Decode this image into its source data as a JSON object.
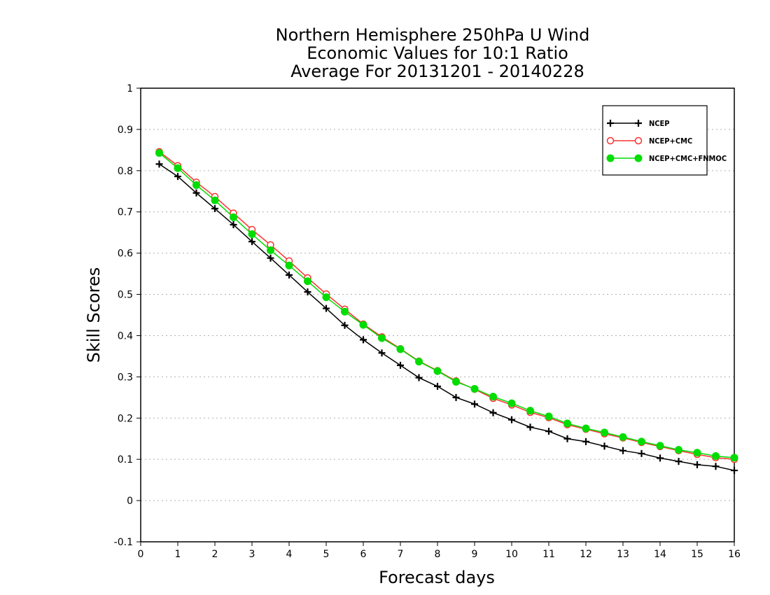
{
  "chart_data": {
    "type": "line",
    "title": [
      "Northern Hemisphere 250hPa U Wind",
      "Economic Values for 10:1 Ratio",
      "Average For 20131201 - 20140228"
    ],
    "xlabel": "Forecast days",
    "ylabel": "Skill Scores",
    "xlim": [
      0,
      16
    ],
    "ylim": [
      -0.1,
      1
    ],
    "xticks": [
      "0",
      "1",
      "2",
      "3",
      "4",
      "5",
      "6",
      "7",
      "8",
      "9",
      "10",
      "11",
      "12",
      "13",
      "14",
      "15",
      "16"
    ],
    "yticks": [
      "-0.1",
      "0",
      "0.1",
      "0.2",
      "0.3",
      "0.4",
      "0.5",
      "0.6",
      "0.7",
      "0.8",
      "0.9",
      "1"
    ],
    "grid": true,
    "legend_position": "top-right",
    "x": [
      0.5,
      1,
      1.5,
      2,
      2.5,
      3,
      3.5,
      4,
      4.5,
      5,
      5.5,
      6,
      6.5,
      7,
      7.5,
      8,
      8.5,
      9,
      9.5,
      10,
      10.5,
      11,
      11.5,
      12,
      12.5,
      13,
      13.5,
      14,
      14.5,
      15,
      15.5,
      16
    ],
    "series": [
      {
        "name": "NCEP",
        "color": "#000000",
        "marker": "plus",
        "values": [
          0.816,
          0.786,
          0.746,
          0.708,
          0.669,
          0.628,
          0.588,
          0.547,
          0.506,
          0.466,
          0.425,
          0.39,
          0.358,
          0.328,
          0.298,
          0.277,
          0.25,
          0.234,
          0.213,
          0.196,
          0.178,
          0.168,
          0.15,
          0.143,
          0.132,
          0.121,
          0.114,
          0.103,
          0.095,
          0.087,
          0.083,
          0.073
        ]
      },
      {
        "name": "NCEP+CMC",
        "color": "#ff3030",
        "marker": "open-circle",
        "values": [
          0.846,
          0.812,
          0.772,
          0.737,
          0.697,
          0.657,
          0.62,
          0.581,
          0.54,
          0.501,
          0.464,
          0.428,
          0.397,
          0.368,
          0.338,
          0.315,
          0.29,
          0.27,
          0.248,
          0.232,
          0.214,
          0.201,
          0.184,
          0.173,
          0.162,
          0.152,
          0.141,
          0.131,
          0.121,
          0.112,
          0.104,
          0.1
        ]
      },
      {
        "name": "NCEP+CMC+FNMOC",
        "color": "#00dd00",
        "marker": "filled-circle",
        "values": [
          0.843,
          0.806,
          0.765,
          0.728,
          0.687,
          0.646,
          0.607,
          0.57,
          0.532,
          0.493,
          0.458,
          0.426,
          0.394,
          0.367,
          0.337,
          0.314,
          0.288,
          0.271,
          0.252,
          0.236,
          0.218,
          0.204,
          0.187,
          0.175,
          0.165,
          0.154,
          0.143,
          0.133,
          0.123,
          0.116,
          0.108,
          0.104
        ]
      }
    ]
  }
}
